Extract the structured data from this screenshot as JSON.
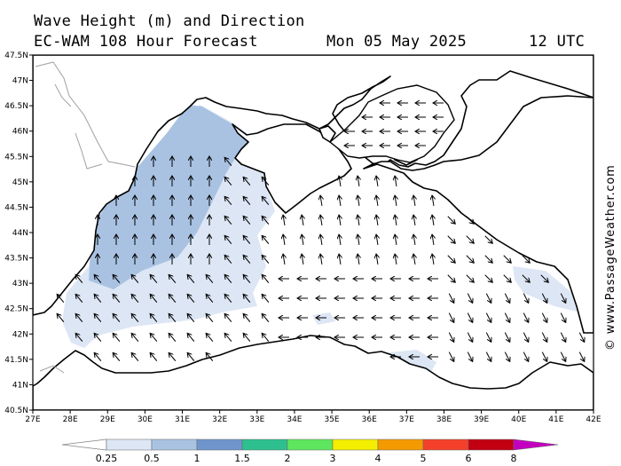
{
  "header": {
    "line1": "Wave Height (m) and Direction",
    "line2": "EC-WAM 108 Hour Forecast",
    "date": "Mon 05 May 2025",
    "time": "12 UTC"
  },
  "axes": {
    "lat_labels": [
      "47.5N",
      "47N",
      "46.5N",
      "46N",
      "45.5N",
      "45N",
      "44.5N",
      "44N",
      "43.5N",
      "43N",
      "42.5N",
      "42N",
      "41.5N",
      "41N",
      "40.5N"
    ],
    "lon_labels": [
      "27E",
      "28E",
      "29E",
      "30E",
      "31E",
      "32E",
      "33E",
      "34E",
      "35E",
      "36E",
      "37E",
      "38E",
      "39E",
      "40E",
      "41E",
      "42E"
    ],
    "lat_range": [
      40.5,
      47.5
    ],
    "lon_range": [
      27,
      42
    ]
  },
  "colorbar": {
    "labels": [
      "0.25",
      "0.5",
      "1",
      "1.5",
      "2",
      "3",
      "4",
      "5",
      "6",
      "8"
    ],
    "colors": [
      "#dde6f4",
      "#a9c2e2",
      "#6f95cc",
      "#2ebf8f",
      "#5ee65e",
      "#f4ee00",
      "#f49a00",
      "#f4402a",
      "#c20012",
      "#c400c0"
    ]
  },
  "colors": {
    "land": "#ffffff",
    "coast": "#000000",
    "border": "#a0a0a0",
    "wave_025_05": "#dde6f4",
    "wave_05_1": "#a9c2e2"
  },
  "copyright": "© www.PassageWeather.com"
}
